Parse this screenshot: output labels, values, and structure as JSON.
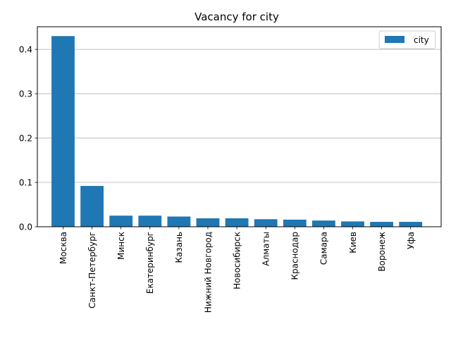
{
  "chart_data": {
    "type": "bar",
    "title": "Vacancy for city",
    "xlabel": "",
    "ylabel": "",
    "categories": [
      "Москва",
      "Санкт-Петербург",
      "Минск",
      "Екатеринбург",
      "Казань",
      "Нижний Новгород",
      "Новосибирск",
      "Алматы",
      "Краснодар",
      "Самара",
      "Киев",
      "Воронеж",
      "Уфа"
    ],
    "series": [
      {
        "name": "city",
        "color": "#1f77b4",
        "values": [
          0.43,
          0.092,
          0.025,
          0.025,
          0.023,
          0.019,
          0.019,
          0.017,
          0.016,
          0.014,
          0.012,
          0.011,
          0.011
        ]
      }
    ],
    "ylim": [
      0,
      0.451
    ],
    "yticks": [
      "0.0",
      "0.1",
      "0.2",
      "0.3",
      "0.4"
    ],
    "ytick_values": [
      0,
      0.1,
      0.2,
      0.3,
      0.4
    ],
    "grid": "y-axis",
    "legend": "top-right"
  }
}
